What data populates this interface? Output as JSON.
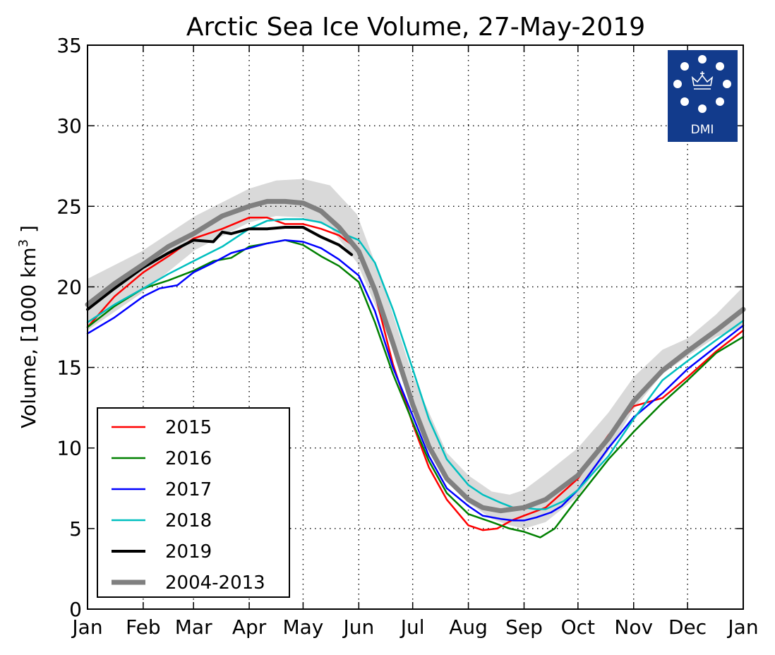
{
  "chart_data": {
    "type": "line",
    "title": "Arctic Sea Ice Volume, 27-May-2019",
    "ylabel_main": "Volume, [1000 km",
    "ylabel_sup": "3",
    "ylabel_end": " ]",
    "xlabel": "",
    "ylim": [
      0,
      35
    ],
    "xlim": [
      0,
      365
    ],
    "yticks": [
      0,
      5,
      10,
      15,
      20,
      25,
      30,
      35
    ],
    "xtick_labels": [
      "Jan",
      "Feb",
      "Mar",
      "Apr",
      "May",
      "Jun",
      "Jul",
      "Aug",
      "Sep",
      "Oct",
      "Nov",
      "Dec",
      "Jan"
    ],
    "xtick_days": [
      0,
      31,
      59,
      90,
      120,
      151,
      181,
      212,
      243,
      273,
      304,
      334,
      365
    ],
    "grid": true,
    "legend_position": "bottom-left",
    "logo_text": "DMI",
    "band": {
      "name": "2004-2013 range",
      "color": "#d9d9d9",
      "x": [
        0,
        30,
        60,
        90,
        105,
        120,
        135,
        150,
        165,
        181,
        200,
        212,
        225,
        235,
        243,
        255,
        273,
        290,
        304,
        320,
        334,
        350,
        365
      ],
      "lower": [
        17.3,
        19.6,
        22.3,
        24.0,
        24.4,
        24.3,
        23.7,
        21.5,
        17.6,
        12.6,
        8.1,
        6.6,
        5.6,
        5.2,
        5.0,
        5.4,
        7.0,
        9.8,
        12.4,
        14.6,
        15.7,
        16.9,
        17.5
      ],
      "upper": [
        20.5,
        22.2,
        24.4,
        26.1,
        26.6,
        26.7,
        26.3,
        24.5,
        20.0,
        14.5,
        9.7,
        8.3,
        7.3,
        7.1,
        7.4,
        8.4,
        10.0,
        12.2,
        14.4,
        16.1,
        16.8,
        18.3,
        20.0
      ]
    },
    "series": [
      {
        "name": "2015",
        "color": "#ff0000",
        "width": 2.5,
        "x": [
          0,
          15,
          31,
          45,
          59,
          75,
          90,
          100,
          110,
          120,
          130,
          140,
          151,
          160,
          170,
          181,
          190,
          200,
          212,
          220,
          228,
          236,
          243,
          255,
          273,
          290,
          304,
          320,
          334,
          350,
          365
        ],
        "y": [
          17.5,
          19.4,
          20.9,
          21.9,
          23.0,
          23.6,
          24.3,
          24.3,
          23.9,
          23.9,
          23.6,
          23.2,
          22.3,
          19.6,
          15.2,
          11.5,
          8.8,
          6.8,
          5.2,
          4.9,
          5.0,
          5.5,
          5.8,
          6.3,
          8.1,
          10.8,
          12.6,
          13.1,
          14.4,
          16.0,
          17.3
        ]
      },
      {
        "name": "2016",
        "color": "#008000",
        "width": 2.5,
        "x": [
          0,
          15,
          31,
          45,
          59,
          70,
          80,
          90,
          100,
          110,
          120,
          130,
          140,
          151,
          160,
          170,
          181,
          190,
          200,
          212,
          225,
          235,
          243,
          252,
          260,
          273,
          290,
          304,
          320,
          334,
          350,
          365
        ],
        "y": [
          17.5,
          18.8,
          19.9,
          20.4,
          21.0,
          21.6,
          21.8,
          22.5,
          22.7,
          22.9,
          22.6,
          21.9,
          21.3,
          20.3,
          17.8,
          14.6,
          11.6,
          9.2,
          7.2,
          5.9,
          5.4,
          5.0,
          4.8,
          4.45,
          5.0,
          6.9,
          9.3,
          11.0,
          12.8,
          14.2,
          15.9,
          16.9
        ]
      },
      {
        "name": "2017",
        "color": "#0000ff",
        "width": 2.5,
        "x": [
          0,
          15,
          31,
          40,
          50,
          59,
          70,
          80,
          90,
          100,
          110,
          120,
          130,
          140,
          151,
          160,
          170,
          181,
          190,
          200,
          212,
          220,
          230,
          237,
          243,
          250,
          258,
          264,
          273,
          290,
          304,
          320,
          334,
          350,
          365
        ],
        "y": [
          17.1,
          18.1,
          19.4,
          19.9,
          20.1,
          20.9,
          21.5,
          22.1,
          22.4,
          22.7,
          22.9,
          22.8,
          22.4,
          21.7,
          20.7,
          18.5,
          15.0,
          12.0,
          9.5,
          7.5,
          6.4,
          5.8,
          5.6,
          5.5,
          5.5,
          5.7,
          6.0,
          6.4,
          7.4,
          10.0,
          11.9,
          13.4,
          14.9,
          16.3,
          17.6
        ]
      },
      {
        "name": "2018",
        "color": "#00bfbf",
        "width": 2.5,
        "x": [
          0,
          15,
          31,
          45,
          59,
          75,
          90,
          100,
          110,
          120,
          130,
          140,
          151,
          160,
          170,
          181,
          190,
          200,
          212,
          220,
          230,
          237,
          243,
          250,
          255,
          265,
          273,
          290,
          304,
          320,
          334,
          350,
          365
        ],
        "y": [
          17.8,
          18.9,
          19.9,
          20.8,
          21.6,
          22.5,
          23.6,
          24.1,
          24.2,
          24.2,
          24.0,
          23.4,
          22.9,
          21.5,
          18.6,
          14.9,
          11.8,
          9.3,
          7.7,
          7.1,
          6.6,
          6.3,
          6.3,
          6.2,
          6.2,
          6.7,
          7.4,
          9.5,
          11.8,
          14.2,
          15.4,
          16.7,
          17.9
        ]
      },
      {
        "name": "2019",
        "color": "#000000",
        "width": 4,
        "x": [
          0,
          15,
          31,
          45,
          59,
          70,
          75,
          80,
          90,
          100,
          110,
          120,
          130,
          140,
          147
        ],
        "y": [
          18.6,
          19.9,
          21.2,
          22.1,
          22.9,
          22.8,
          23.4,
          23.3,
          23.6,
          23.6,
          23.7,
          23.7,
          23.1,
          22.6,
          22.0
        ]
      },
      {
        "name": "2004-2013",
        "color": "#808080",
        "width": 7,
        "x": [
          0,
          15,
          31,
          45,
          59,
          75,
          90,
          100,
          110,
          120,
          130,
          140,
          151,
          160,
          170,
          181,
          190,
          200,
          212,
          220,
          230,
          236,
          243,
          255,
          273,
          290,
          304,
          320,
          334,
          350,
          365
        ],
        "y": [
          18.9,
          20.2,
          21.4,
          22.5,
          23.3,
          24.4,
          25.0,
          25.3,
          25.3,
          25.2,
          24.7,
          23.7,
          22.2,
          19.8,
          16.5,
          12.7,
          10.1,
          8.1,
          6.8,
          6.3,
          6.1,
          6.2,
          6.3,
          6.8,
          8.3,
          10.6,
          12.9,
          14.8,
          16.0,
          17.3,
          18.6
        ]
      }
    ]
  }
}
